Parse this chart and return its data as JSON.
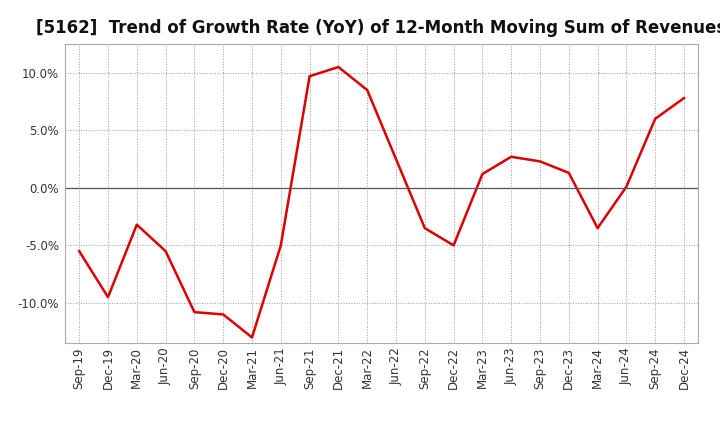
{
  "title": "[5162]  Trend of Growth Rate (YoY) of 12-Month Moving Sum of Revenues",
  "x_labels": [
    "Sep-19",
    "Dec-19",
    "Mar-20",
    "Jun-20",
    "Sep-20",
    "Dec-20",
    "Mar-21",
    "Jun-21",
    "Sep-21",
    "Dec-21",
    "Mar-22",
    "Jun-22",
    "Sep-22",
    "Dec-22",
    "Mar-23",
    "Jun-23",
    "Sep-23",
    "Dec-23",
    "Mar-24",
    "Jun-24",
    "Sep-24",
    "Dec-24"
  ],
  "y_values": [
    -5.5,
    -9.5,
    -3.2,
    -5.5,
    -10.8,
    -11.0,
    -13.0,
    -5.0,
    9.7,
    10.5,
    8.5,
    2.5,
    -3.5,
    -5.0,
    1.2,
    2.7,
    2.3,
    1.3,
    -3.5,
    0.1,
    6.0,
    7.8
  ],
  "line_color": "#dd0000",
  "line_width": 1.8,
  "ylim": [
    -13.5,
    12.5
  ],
  "yticks": [
    -10.0,
    -5.0,
    0.0,
    5.0,
    10.0
  ],
  "grid_color": "#999999",
  "background_color": "#ffffff",
  "title_fontsize": 12,
  "tick_fontsize": 8.5,
  "title_color": "#111111"
}
